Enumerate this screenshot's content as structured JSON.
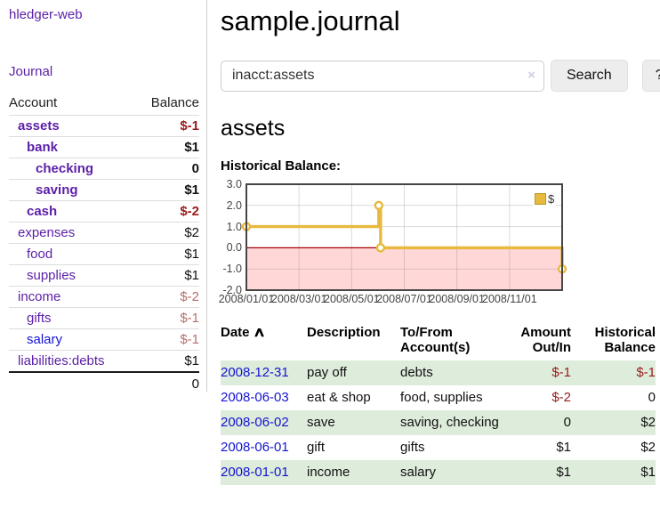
{
  "app": {
    "brand": "hledger-web",
    "nav_journal": "Journal"
  },
  "sidebar": {
    "table_headers": {
      "account": "Account",
      "balance": "Balance"
    },
    "accounts": [
      {
        "name": "assets",
        "indent": 0,
        "bold": true,
        "balance": "$-1",
        "balance_style": "neg-strong"
      },
      {
        "name": "bank",
        "indent": 1,
        "bold": true,
        "balance": "$1",
        "balance_style": "normal"
      },
      {
        "name": "checking",
        "indent": 2,
        "bold": true,
        "balance": "0",
        "balance_style": "normal"
      },
      {
        "name": "saving",
        "indent": 2,
        "bold": true,
        "balance": "$1",
        "balance_style": "normal"
      },
      {
        "name": "cash",
        "indent": 1,
        "bold": true,
        "balance": "$-2",
        "balance_style": "neg-strong"
      },
      {
        "name": "expenses",
        "indent": 0,
        "bold": false,
        "balance": "$2",
        "balance_style": "normal"
      },
      {
        "name": "food",
        "indent": 1,
        "bold": false,
        "balance": "$1",
        "balance_style": "normal"
      },
      {
        "name": "supplies",
        "indent": 1,
        "bold": false,
        "balance": "$1",
        "balance_style": "normal"
      },
      {
        "name": "income",
        "indent": 0,
        "bold": false,
        "balance": "$-2",
        "balance_style": "neg-muted"
      },
      {
        "name": "gifts",
        "indent": 1,
        "bold": false,
        "balance": "$-1",
        "balance_style": "neg-muted"
      },
      {
        "name": "salary",
        "indent": 1,
        "bold": false,
        "link_style": "blue",
        "balance": "$-1",
        "balance_style": "neg-muted"
      },
      {
        "name": "liabilities:debts",
        "indent": 0,
        "bold": false,
        "balance": "$1",
        "balance_style": "normal"
      }
    ],
    "total": "0"
  },
  "header": {
    "title": "sample.journal"
  },
  "search": {
    "value": "inacct:assets",
    "clear_icon": "×",
    "button": "Search",
    "help_button": "?"
  },
  "account_page": {
    "heading": "assets",
    "chart_label": "Historical Balance:"
  },
  "chart_data": {
    "type": "line",
    "title": "Historical Balance:",
    "step": true,
    "series": [
      {
        "name": "$",
        "color": "#e7b93e",
        "points": [
          {
            "date": "2008-01-01",
            "m": 0,
            "v": 1
          },
          {
            "date": "2008-06-01",
            "m": 5.03,
            "v": 2
          },
          {
            "date": "2008-06-03",
            "m": 5.1,
            "v": 0
          },
          {
            "date": "2008-12-31",
            "m": 12,
            "v": -1
          }
        ]
      }
    ],
    "x_ticks": [
      {
        "label": "2008/01/01",
        "month": 0
      },
      {
        "label": "2008/03/01",
        "month": 2
      },
      {
        "label": "2008/05/01",
        "month": 4
      },
      {
        "label": "2008/07/01",
        "month": 6
      },
      {
        "label": "2008/09/01",
        "month": 8
      },
      {
        "label": "2008/11/01",
        "month": 10
      }
    ],
    "y_ticks": [
      "3.0",
      "2.0",
      "1.0",
      "0.0",
      "-1.0",
      "-2.0"
    ],
    "ylim": [
      -2,
      3
    ],
    "x_range_months": [
      0,
      12
    ],
    "grid": true,
    "legend": {
      "label": "$",
      "position": "top-right"
    },
    "negative_region": {
      "from": -2,
      "to": 0,
      "fill": "#ffd7d7",
      "edge": "#a40000"
    }
  },
  "register": {
    "headers": {
      "date": {
        "line1": "Date",
        "sort_icon": "∧"
      },
      "desc": {
        "line1": "Description"
      },
      "acct": {
        "line1": "To/From",
        "line2": "Account(s)"
      },
      "amount": {
        "line1": "Amount",
        "line2": "Out/In"
      },
      "balance": {
        "line1": "Historical",
        "line2": "Balance"
      }
    },
    "rows": [
      {
        "date": "2008-12-31",
        "description": "pay off",
        "accounts": "debts",
        "amount": "$-1",
        "amount_neg": true,
        "balance": "$-1",
        "balance_neg": true
      },
      {
        "date": "2008-06-03",
        "description": "eat & shop",
        "accounts": "food, supplies",
        "amount": "$-2",
        "amount_neg": true,
        "balance": "0",
        "balance_neg": false
      },
      {
        "date": "2008-06-02",
        "description": "save",
        "accounts": "saving, checking",
        "amount": "0",
        "amount_neg": false,
        "balance": "$2",
        "balance_neg": false
      },
      {
        "date": "2008-06-01",
        "description": "gift",
        "accounts": "gifts",
        "amount": "$1",
        "amount_neg": false,
        "balance": "$2",
        "balance_neg": false
      },
      {
        "date": "2008-01-01",
        "description": "income",
        "accounts": "salary",
        "amount": "$1",
        "amount_neg": false,
        "balance": "$1",
        "balance_neg": false
      }
    ]
  }
}
